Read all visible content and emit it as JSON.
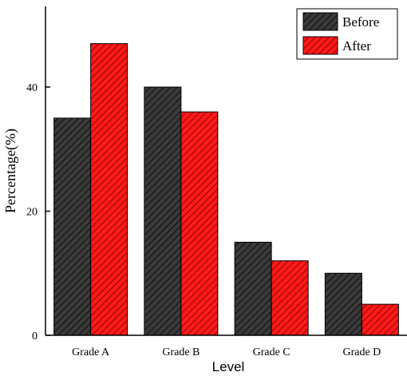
{
  "chart_data": {
    "type": "bar",
    "categories": [
      "Grade A",
      "Grade B",
      "Grade C",
      "Grade D"
    ],
    "series": [
      {
        "name": "Before",
        "values": [
          35,
          40,
          15,
          10
        ],
        "color": "#3a3a3a",
        "hatch": "#000000"
      },
      {
        "name": "After",
        "values": [
          47,
          36,
          12,
          5
        ],
        "color": "#ff1a1a",
        "hatch": "#6b0000"
      }
    ],
    "xlabel": "Level",
    "ylabel": "Percentage(%)",
    "ylim": [
      0,
      53
    ],
    "yticks": [
      0,
      20,
      40
    ],
    "grid": false,
    "legend_position": "top-right"
  }
}
